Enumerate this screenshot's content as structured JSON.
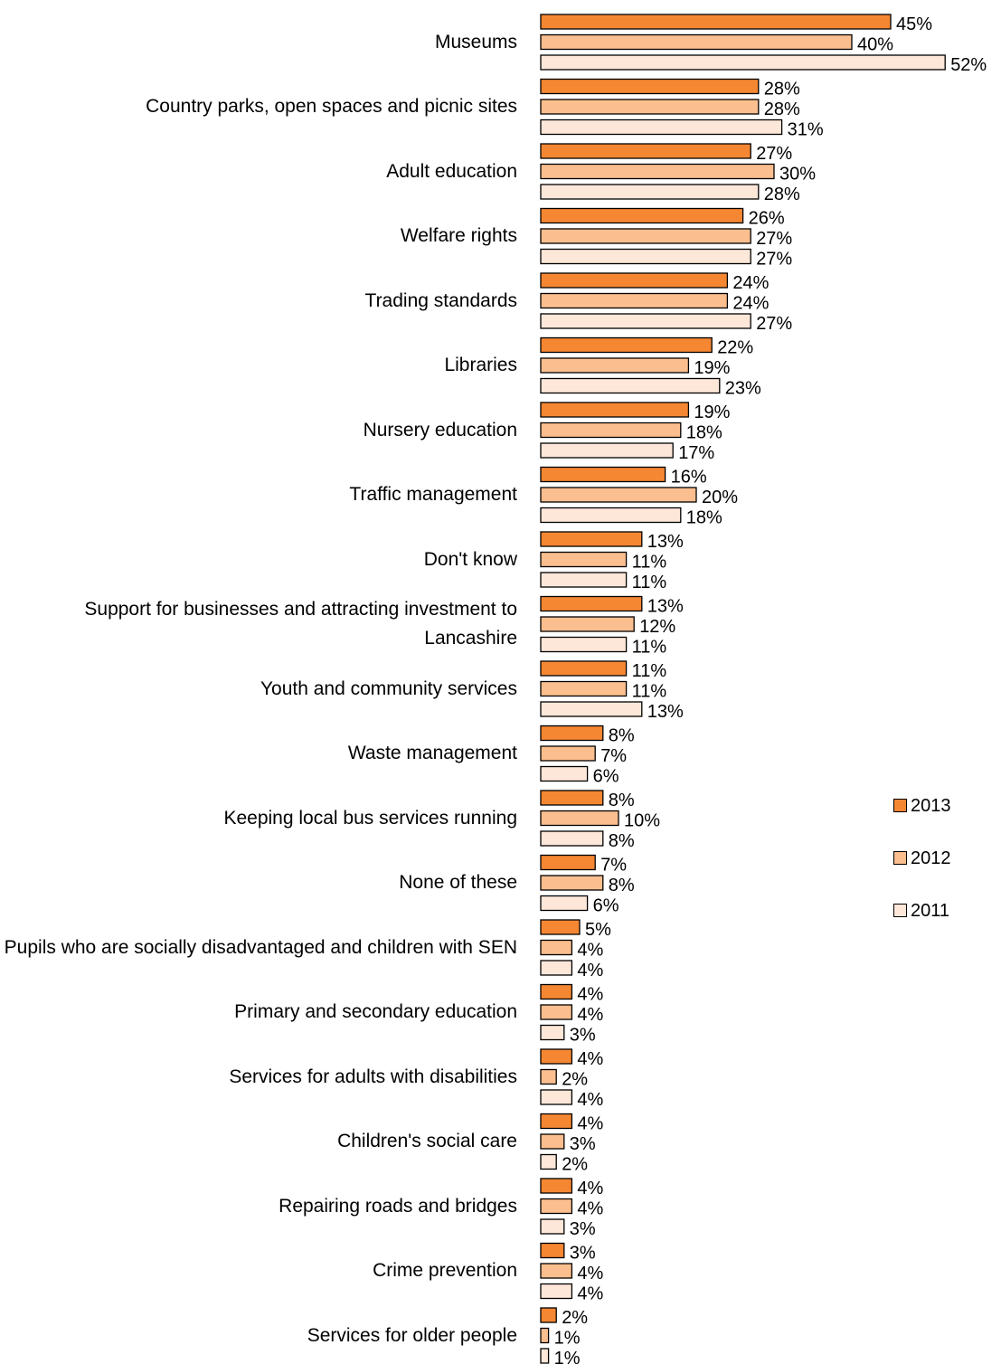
{
  "chart_data": {
    "type": "bar",
    "orientation": "horizontal",
    "categories": [
      "Museums",
      "Country parks, open spaces and picnic sites",
      "Adult education",
      "Welfare rights",
      "Trading standards",
      "Libraries",
      "Nursery education",
      "Traffic management",
      "Don't know",
      "Support for businesses and attracting investment to Lancashire",
      "Youth and community services",
      "Waste management",
      "Keeping local bus services running",
      "None of these",
      "Pupils who are socially disadvantaged and children with SEN",
      "Primary and secondary education",
      "Services for adults with disabilities",
      "Children's social care",
      "Repairing roads and bridges",
      "Crime prevention",
      "Services for older people"
    ],
    "series": [
      {
        "name": "2013",
        "color": "#F58733",
        "values": [
          45,
          28,
          27,
          26,
          24,
          22,
          19,
          16,
          13,
          13,
          11,
          8,
          8,
          7,
          5,
          4,
          4,
          4,
          4,
          3,
          2
        ]
      },
      {
        "name": "2012",
        "color": "#FBBE8E",
        "values": [
          40,
          28,
          30,
          27,
          24,
          19,
          18,
          20,
          11,
          12,
          11,
          7,
          10,
          8,
          4,
          4,
          2,
          3,
          4,
          4,
          1
        ]
      },
      {
        "name": "2011",
        "color": "#FDE7D8",
        "values": [
          52,
          31,
          28,
          27,
          27,
          23,
          17,
          18,
          11,
          11,
          13,
          6,
          8,
          6,
          4,
          3,
          4,
          2,
          3,
          4,
          1
        ]
      }
    ],
    "value_suffix": "%",
    "xlim": [
      0,
      60
    ],
    "legend_position": "right"
  }
}
